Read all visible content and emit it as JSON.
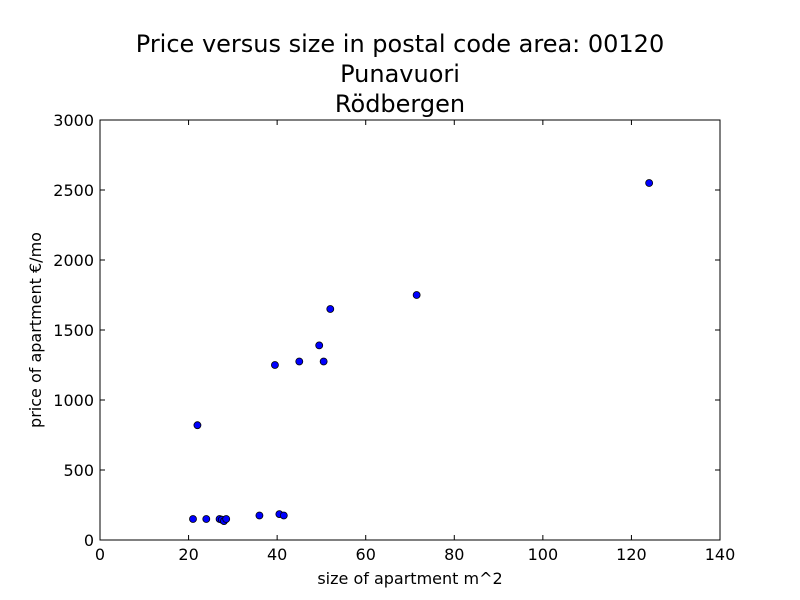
{
  "chart_data": {
    "type": "scatter",
    "title": [
      "Price versus size in postal code area: 00120",
      "Punavuori",
      "Rödbergen"
    ],
    "xlabel": "size of apartment m^2",
    "ylabel": "price of apartment €/mo",
    "xlim": [
      0,
      140
    ],
    "ylim": [
      0,
      3000
    ],
    "xticks": [
      0,
      20,
      40,
      60,
      80,
      100,
      120,
      140
    ],
    "yticks": [
      0,
      500,
      1000,
      1500,
      2000,
      2500,
      3000
    ],
    "grid": false,
    "marker_color": "#0000ff",
    "points": [
      {
        "x": 21,
        "y": 150
      },
      {
        "x": 22,
        "y": 820
      },
      {
        "x": 24,
        "y": 150
      },
      {
        "x": 27,
        "y": 150
      },
      {
        "x": 27.5,
        "y": 145
      },
      {
        "x": 28,
        "y": 135
      },
      {
        "x": 28.5,
        "y": 150
      },
      {
        "x": 36,
        "y": 175
      },
      {
        "x": 39.5,
        "y": 1250
      },
      {
        "x": 40.5,
        "y": 185
      },
      {
        "x": 41.5,
        "y": 175
      },
      {
        "x": 45,
        "y": 1275
      },
      {
        "x": 49.5,
        "y": 1390
      },
      {
        "x": 50.5,
        "y": 1275
      },
      {
        "x": 52,
        "y": 1650
      },
      {
        "x": 71.5,
        "y": 1750
      },
      {
        "x": 124,
        "y": 2550
      }
    ]
  }
}
